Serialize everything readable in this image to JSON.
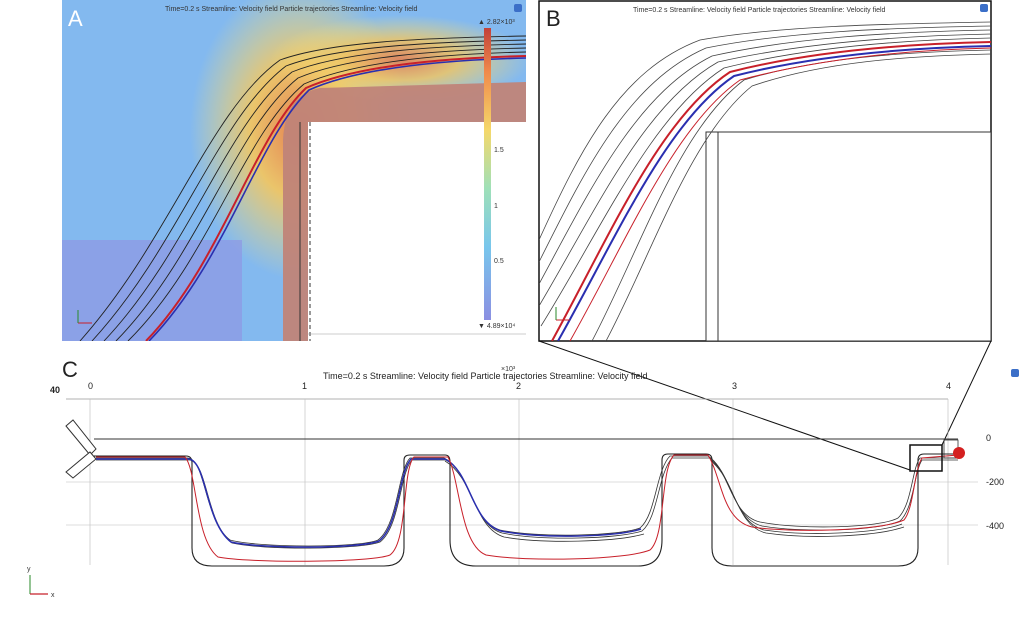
{
  "panel_a": {
    "letter": "A",
    "title": "Time=0.2 s   Streamline: Velocity field Particle trajectories  Streamline: Velocity field",
    "colorbar": {
      "max_label": "▲ 2.82×10³",
      "mid_labels": [
        "1.5",
        "1",
        "0.5"
      ],
      "min_label": "▼ 4.89×10⁴"
    }
  },
  "panel_b": {
    "letter": "B",
    "title": "Time=0.2 s   Streamline: Velocity field Particle trajectories  Streamline: Velocity field"
  },
  "panel_c": {
    "letter": "C",
    "title": "Time=0.2 s   Streamline: Velocity field Particle trajectories  Streamline: Velocity field",
    "x_exponent": "×10³",
    "x_ticks": [
      "0",
      "1",
      "2",
      "3",
      "4"
    ],
    "y_ticks": [
      "0",
      "-200",
      "-400"
    ],
    "left_label": "40",
    "axis_y": "y",
    "axis_x": "x"
  },
  "colors": {
    "red_trajectory": "#c8202a",
    "blue_trajectory": "#2a2fb0",
    "streamline": "#222222",
    "wall_fill": "#c08478"
  }
}
